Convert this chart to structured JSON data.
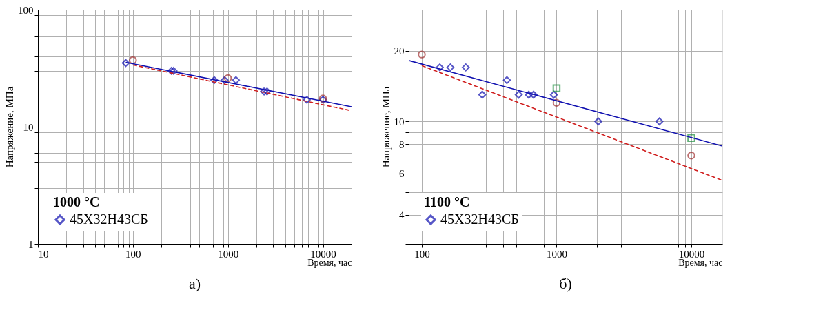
{
  "chart_data": [
    {
      "type": "scatter",
      "xlabel": "Время, час",
      "ylabel": "Напряжение, МПа",
      "legend_title": "1000 °C",
      "annotations": [
        "а)"
      ],
      "log": "xy",
      "grid": true,
      "legend": "bottom left",
      "xlim": [
        10,
        20000
      ],
      "ylim": [
        1,
        100
      ],
      "xticks": [
        10,
        {
          "value": 20,
          "label": null
        },
        {
          "value": 30,
          "label": null
        },
        {
          "value": 40,
          "label": null
        },
        {
          "value": 50,
          "label": null
        },
        {
          "value": 60,
          "label": null
        },
        {
          "value": 70,
          "label": null
        },
        {
          "value": 80,
          "label": null
        },
        {
          "value": 90,
          "label": null
        },
        100,
        {
          "value": 200,
          "label": null
        },
        {
          "value": 300,
          "label": null
        },
        {
          "value": 400,
          "label": null
        },
        {
          "value": 500,
          "label": null
        },
        {
          "value": 600,
          "label": null
        },
        {
          "value": 700,
          "label": null
        },
        {
          "value": 800,
          "label": null
        },
        {
          "value": 900,
          "label": null
        },
        1000,
        {
          "value": 2000,
          "label": null
        },
        {
          "value": 3000,
          "label": null
        },
        {
          "value": 4000,
          "label": null
        },
        {
          "value": 5000,
          "label": null
        },
        {
          "value": 6000,
          "label": null
        },
        {
          "value": 7000,
          "label": null
        },
        {
          "value": 8000,
          "label": null
        },
        {
          "value": 9000,
          "label": null
        },
        10000
      ],
      "yticks": [
        1,
        {
          "value": 2,
          "label": null
        },
        {
          "value": 3,
          "label": null
        },
        {
          "value": 4,
          "label": null
        },
        {
          "value": 5,
          "label": null
        },
        {
          "value": 6,
          "label": null
        },
        {
          "value": 7,
          "label": null
        },
        {
          "value": 8,
          "label": null
        },
        {
          "value": 9,
          "label": null
        },
        10,
        {
          "value": 20,
          "label": null
        },
        {
          "value": 30,
          "label": null
        },
        {
          "value": 40,
          "label": null
        },
        {
          "value": 50,
          "label": null
        },
        {
          "value": 60,
          "label": null
        },
        {
          "value": 70,
          "label": null
        },
        {
          "value": 80,
          "label": null
        },
        {
          "value": 90,
          "label": null
        },
        100
      ],
      "series": [
        {
          "name": "45Х32Н43СБ",
          "marker": "diamond",
          "color": "#1010b0",
          "x": [
            84,
            254,
            268,
            718,
            921,
            1214,
            2400,
            2580,
            6780,
            10000
          ],
          "values": [
            35,
            30,
            30,
            25,
            25,
            25,
            20,
            20,
            17,
            17
          ]
        },
        {
          "marker": "circle",
          "color": "#a03030",
          "x": [
            100,
            1000,
            10000
          ],
          "values": [
            37,
            26,
            17.4
          ]
        },
        {
          "type": "line",
          "line_style": "solid",
          "color": "#1010b0",
          "x": [
            84,
            20000
          ],
          "values": [
            35.5,
            14.8
          ]
        },
        {
          "type": "line",
          "line_style": "dashed",
          "color": "#d02020",
          "x": [
            100,
            20000
          ],
          "values": [
            33.7,
            13.7
          ]
        }
      ]
    },
    {
      "type": "scatter",
      "xlabel": "Время, час",
      "ylabel": "Напряжение, МПа",
      "legend_title": "1100 °C",
      "annotations": [
        "б)"
      ],
      "log": "xy",
      "grid": true,
      "legend": "bottom left",
      "xlim": [
        80,
        17000
      ],
      "ylim": [
        3,
        30
      ],
      "xticks": [
        100,
        {
          "value": 200,
          "label": null
        },
        {
          "value": 300,
          "label": null
        },
        {
          "value": 400,
          "label": null
        },
        {
          "value": 500,
          "label": null
        },
        {
          "value": 600,
          "label": null
        },
        {
          "value": 700,
          "label": null
        },
        {
          "value": 800,
          "label": null
        },
        {
          "value": 900,
          "label": null
        },
        1000,
        {
          "value": 2000,
          "label": null
        },
        {
          "value": 3000,
          "label": null
        },
        {
          "value": 4000,
          "label": null
        },
        {
          "value": 5000,
          "label": null
        },
        {
          "value": 6000,
          "label": null
        },
        {
          "value": 7000,
          "label": null
        },
        {
          "value": 8000,
          "label": null
        },
        {
          "value": 9000,
          "label": null
        },
        10000
      ],
      "yticks": [
        {
          "value": 3,
          "label": null
        },
        4,
        {
          "value": 5,
          "label": null
        },
        6,
        {
          "value": 7,
          "label": null
        },
        8,
        {
          "value": 9,
          "label": null
        },
        10,
        20
      ],
      "series": [
        {
          "name": "45Х32Н43СБ",
          "marker": "diamond",
          "color": "#1010b0",
          "x": [
            136,
            163,
            212,
            281,
            428,
            524,
            622,
            675,
            955,
            2040,
            5800
          ],
          "values": [
            17,
            17,
            17,
            13,
            15,
            13,
            13,
            13,
            13,
            10,
            10
          ]
        },
        {
          "marker": "circle",
          "color": "#a03030",
          "x": [
            100,
            1000,
            10000
          ],
          "values": [
            19.3,
            12,
            7.15
          ]
        },
        {
          "marker": "square",
          "color": "#209040",
          "x": [
            1000,
            10000
          ],
          "values": [
            13.85,
            8.5
          ]
        },
        {
          "type": "line",
          "line_style": "solid",
          "color": "#1010b0",
          "x": [
            80,
            17000
          ],
          "values": [
            18.2,
            7.85
          ]
        },
        {
          "type": "line",
          "line_style": "dashed",
          "color": "#d02020",
          "x": [
            100,
            17000
          ],
          "values": [
            17.3,
            5.6
          ]
        }
      ]
    }
  ]
}
